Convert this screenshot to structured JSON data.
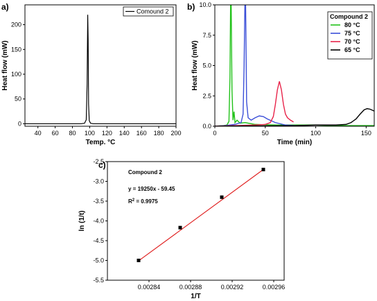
{
  "chart_data": [
    {
      "panel_label": "a)",
      "type": "line",
      "xlabel": "Temp. °C",
      "ylabel": "Heat flow (mW)",
      "xlim": [
        25,
        200
      ],
      "ylim": [
        -5,
        240
      ],
      "xticks": [
        40,
        60,
        80,
        100,
        120,
        140,
        160,
        180,
        200
      ],
      "yticks": [
        0,
        50,
        100,
        150,
        200
      ],
      "legend": "top-right",
      "series": [
        {
          "name": "Comound 2",
          "color": "#000000",
          "x": [
            25,
            40,
            60,
            80,
            90,
            94,
            96,
            97,
            97.7,
            98.2,
            98.7,
            99.5,
            101,
            104,
            110,
            130,
            150,
            170,
            200
          ],
          "y": [
            0,
            0,
            0,
            0,
            0,
            1,
            8,
            80,
            220,
            170,
            40,
            6,
            1,
            0,
            0,
            0,
            0,
            0,
            0
          ]
        }
      ]
    },
    {
      "panel_label": "b)",
      "type": "line",
      "xlabel": "Time (min)",
      "ylabel": "Heat flow (mW)",
      "xlim": [
        0,
        158
      ],
      "ylim": [
        0,
        10
      ],
      "xticks": [
        0,
        50,
        100,
        150
      ],
      "yticks": [
        0.0,
        2.5,
        5.0,
        7.5,
        10.0
      ],
      "legend_title": "Compound 2",
      "legend": "top-right",
      "series": [
        {
          "name": "80 °C",
          "color": "#22c21a",
          "x": [
            0,
            8,
            12,
            14,
            15,
            15.6,
            16.2,
            17,
            18,
            19,
            20,
            22,
            25,
            30,
            40,
            60,
            80,
            100,
            120,
            140,
            158
          ],
          "y": [
            0,
            0.05,
            0.1,
            0.4,
            4,
            10,
            10,
            3,
            0.5,
            1.2,
            0.3,
            0.5,
            0.25,
            0.3,
            0.15,
            0.1,
            0.1,
            0.1,
            0.05,
            0.05,
            0.05
          ]
        },
        {
          "name": "75 °C",
          "color": "#3b4fd8",
          "x": [
            0,
            10,
            20,
            26,
            28,
            29,
            29.8,
            30.5,
            31.5,
            33,
            36,
            40,
            44,
            48,
            52,
            56,
            60,
            65,
            70,
            80
          ],
          "y": [
            0,
            0.05,
            0.15,
            0.3,
            1,
            5,
            10,
            10,
            2,
            0.7,
            0.5,
            0.7,
            0.85,
            0.8,
            0.6,
            0.45,
            0.3,
            0.2,
            0.1,
            0.05
          ]
        },
        {
          "name": "70 °C",
          "color": "#e8244a",
          "x": [
            0,
            20,
            40,
            50,
            55,
            58,
            60,
            62,
            64,
            66,
            68,
            70,
            72,
            75,
            78
          ],
          "y": [
            0,
            0.05,
            0.1,
            0.15,
            0.3,
            0.8,
            1.8,
            3.0,
            3.7,
            3.0,
            1.8,
            1.0,
            0.7,
            0.5,
            0.35
          ]
        },
        {
          "name": "65 °C",
          "color": "#000000",
          "x": [
            0,
            40,
            80,
            100,
            120,
            130,
            135,
            140,
            144,
            148,
            151,
            154,
            158
          ],
          "y": [
            0,
            0.03,
            0.05,
            0.1,
            0.1,
            0.15,
            0.3,
            0.6,
            1.0,
            1.35,
            1.45,
            1.4,
            1.25
          ]
        }
      ]
    },
    {
      "panel_label": "c)",
      "type": "scatter",
      "xlabel": "1/T",
      "ylabel": "ln (1/t)",
      "xlim": [
        0.0028,
        0.00297
      ],
      "ylim": [
        -5.5,
        -2.5
      ],
      "xticks": [
        "0.00284",
        "0.00288",
        "0.00292",
        "0.00296"
      ],
      "yticks": [
        "-2.5",
        "-3.0",
        "-3.5",
        "-4.0",
        "-4.5",
        "-5.0",
        "-5.5"
      ],
      "title": "Compound 2",
      "equation": "y = 19250x - 59.45",
      "r2_prefix": "R",
      "r2_sup": "2",
      "r2_value": " = 0.9975",
      "points": {
        "color": "#000000",
        "x": [
          0.00283,
          0.00287,
          0.00291,
          0.00295
        ],
        "y": [
          -5.0,
          -4.17,
          -3.4,
          -2.7
        ]
      },
      "fit": {
        "color": "#e02020",
        "x": [
          0.00283,
          0.00295
        ],
        "y": [
          -5.01,
          -2.7
        ]
      }
    }
  ]
}
